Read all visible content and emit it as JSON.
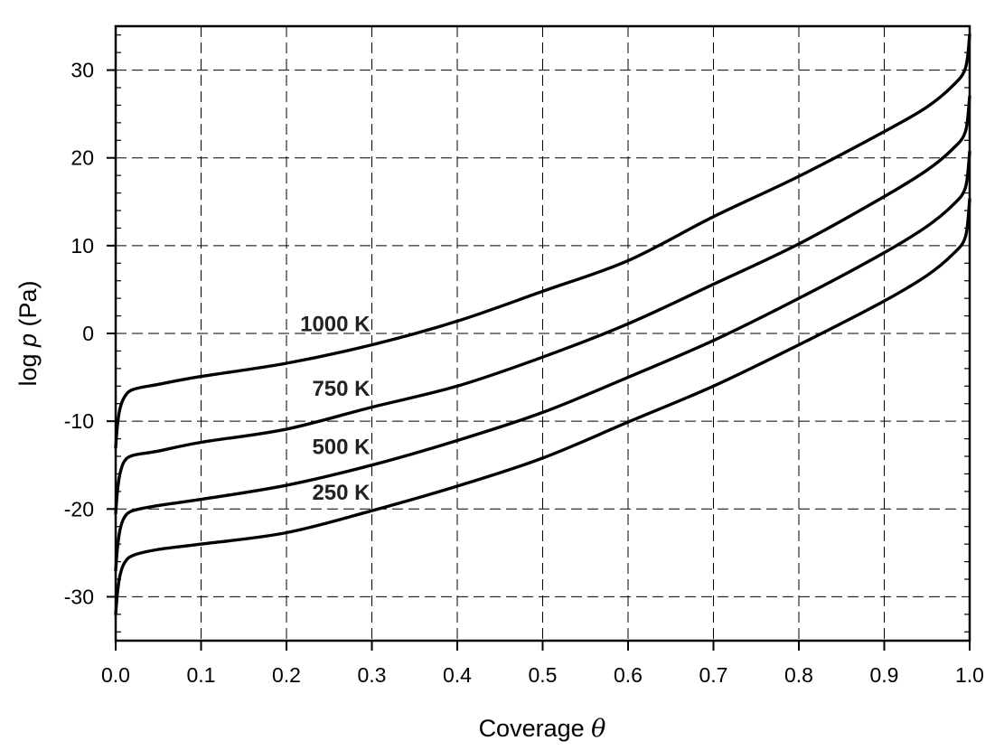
{
  "chart_data": {
    "type": "line",
    "title": "",
    "xlabel": "Coverage",
    "xlabel_symbol": "θ",
    "ylabel_prefix": "log ",
    "ylabel_symbol": "p",
    "ylabel_suffix": " (Pa)",
    "xlim": [
      0.0,
      1.0
    ],
    "ylim": [
      -35,
      35
    ],
    "grid": true,
    "grid_style": "dashed",
    "legend": "inline curve labels",
    "x_ticks": [
      "0.0",
      "0.1",
      "0.2",
      "0.3",
      "0.4",
      "0.5",
      "0.6",
      "0.7",
      "0.8",
      "0.9",
      "1.0"
    ],
    "y_ticks": [
      "30",
      "20",
      "10",
      "0",
      "-10",
      "-20",
      "-30"
    ],
    "x": [
      0.0,
      0.002,
      0.005,
      0.01,
      0.02,
      0.05,
      0.1,
      0.2,
      0.3,
      0.4,
      0.5,
      0.6,
      0.7,
      0.8,
      0.9,
      0.95,
      0.98,
      0.995,
      1.0
    ],
    "series": [
      {
        "name": "1000 K",
        "values": [
          -13.0,
          -10.5,
          -8.6,
          -7.3,
          -6.4,
          -5.8,
          -4.9,
          -3.4,
          -1.3,
          1.4,
          4.8,
          8.3,
          13.3,
          17.9,
          23.0,
          25.8,
          28.2,
          30.2,
          34.0
        ]
      },
      {
        "name": "750 K",
        "values": [
          -20.5,
          -18.0,
          -16.0,
          -14.6,
          -13.9,
          -13.4,
          -12.4,
          -10.9,
          -8.4,
          -6.0,
          -2.7,
          1.1,
          5.6,
          10.2,
          15.6,
          18.6,
          21.0,
          23.0,
          27.0
        ]
      },
      {
        "name": "500 K",
        "values": [
          -27.0,
          -24.5,
          -22.4,
          -21.0,
          -20.2,
          -19.6,
          -18.9,
          -17.3,
          -15.0,
          -12.2,
          -9.0,
          -5.0,
          -0.8,
          4.0,
          9.2,
          12.2,
          14.6,
          16.6,
          20.7
        ]
      },
      {
        "name": "250 K",
        "values": [
          -32.0,
          -29.6,
          -27.6,
          -26.2,
          -25.3,
          -24.6,
          -24.0,
          -22.7,
          -20.2,
          -17.4,
          -14.2,
          -10.1,
          -6.0,
          -1.3,
          3.7,
          6.6,
          9.0,
          11.0,
          15.3
        ]
      }
    ],
    "annotations": [
      {
        "text": "1000 K",
        "x": 0.3,
        "y": 1.2
      },
      {
        "text": "750 K",
        "x": 0.3,
        "y": -6.2
      },
      {
        "text": "500 K",
        "x": 0.3,
        "y": -12.8
      },
      {
        "text": "250 K",
        "x": 0.3,
        "y": -18.0
      }
    ]
  }
}
